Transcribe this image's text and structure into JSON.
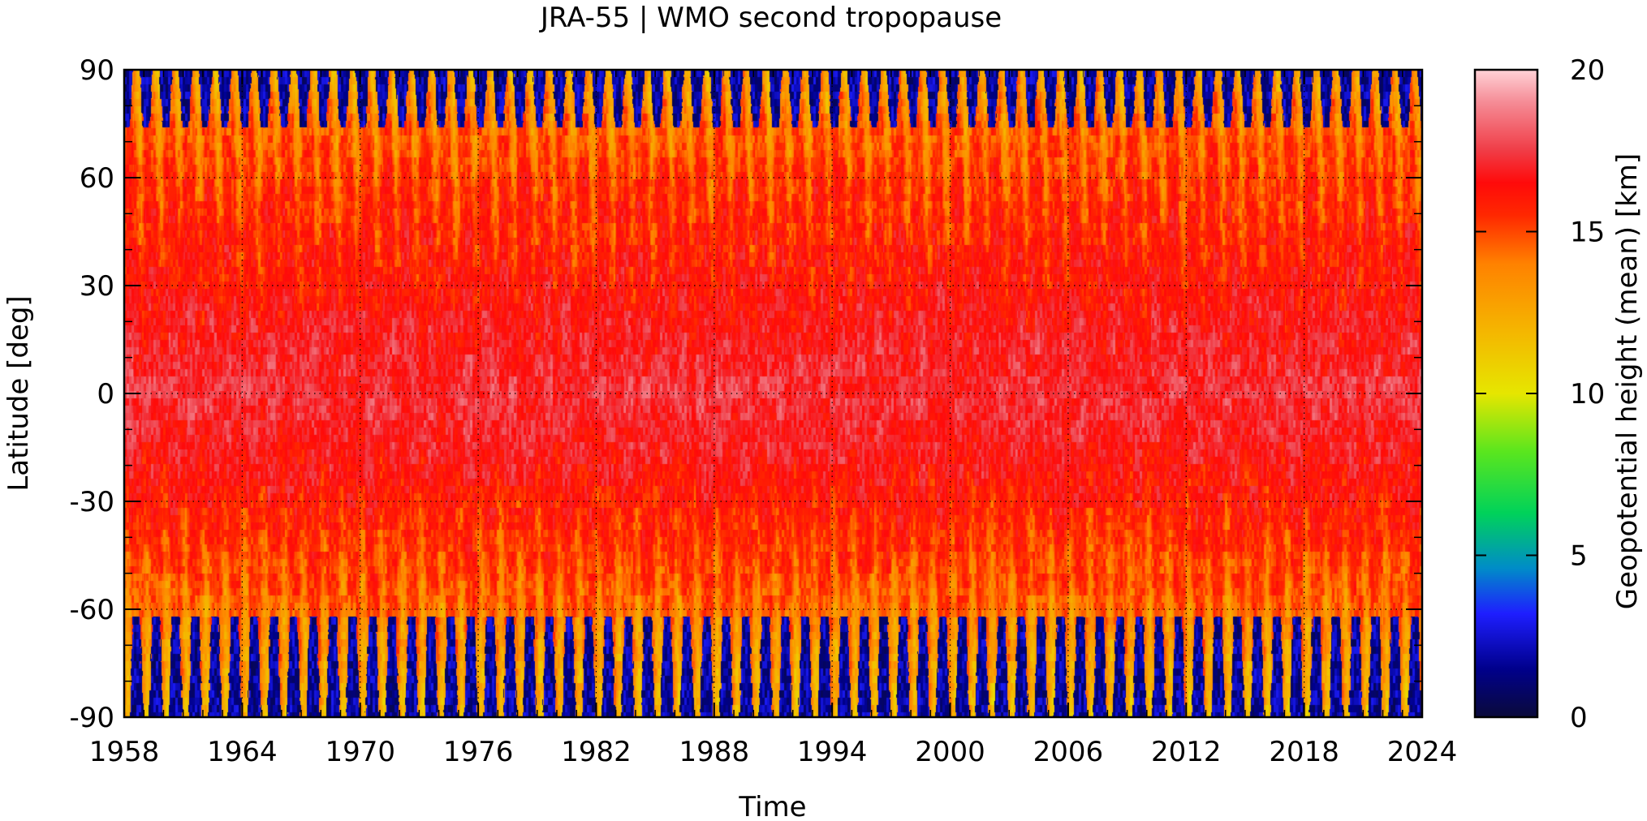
{
  "chart_data": {
    "type": "heatmap",
    "title": "JRA-55 | WMO second tropopause",
    "xlabel": "Time",
    "ylabel": "Latitude [deg]",
    "colorbar_label": "Geopotential height (mean) [km]",
    "xlim": [
      1958,
      2024
    ],
    "ylim": [
      -90,
      90
    ],
    "clim": [
      0,
      20
    ],
    "x_ticks": [
      1958,
      1964,
      1970,
      1976,
      1982,
      1988,
      1994,
      2000,
      2006,
      2012,
      2018,
      2024
    ],
    "x_tick_labels": [
      "1958",
      "1964",
      "1970",
      "1976",
      "1982",
      "1988",
      "1994",
      "2000",
      "2006",
      "2012",
      "2018",
      "2024"
    ],
    "y_ticks": [
      90,
      60,
      30,
      0,
      -30,
      -60,
      -90
    ],
    "y_tick_labels": [
      "90",
      "60",
      "30",
      "0",
      "-30",
      "-60",
      "-90"
    ],
    "colorbar_ticks": [
      20,
      15,
      10,
      5,
      0
    ],
    "colorbar_tick_labels": [
      "20",
      "15",
      "10",
      "5",
      "0"
    ],
    "colormap": [
      {
        "v": 0,
        "color": "#0a0a3a"
      },
      {
        "v": 1.5,
        "color": "#00008c"
      },
      {
        "v": 3.2,
        "color": "#1e1eff"
      },
      {
        "v": 4.6,
        "color": "#008cc8"
      },
      {
        "v": 6.3,
        "color": "#00d25a"
      },
      {
        "v": 8.2,
        "color": "#5ae61e"
      },
      {
        "v": 10,
        "color": "#e6e600"
      },
      {
        "v": 12,
        "color": "#f5b400"
      },
      {
        "v": 14,
        "color": "#ff8200"
      },
      {
        "v": 15.5,
        "color": "#ff2800"
      },
      {
        "v": 16.5,
        "color": "#ff0a0a"
      },
      {
        "v": 17.5,
        "color": "#f03c46"
      },
      {
        "v": 19,
        "color": "#f58c96"
      },
      {
        "v": 20,
        "color": "#ffd2d7"
      }
    ],
    "latitude_profile_km": [
      {
        "lat": -90,
        "z": 13.0
      },
      {
        "lat": -75,
        "z": 14.0
      },
      {
        "lat": -60,
        "z": 14.8
      },
      {
        "lat": -45,
        "z": 15.6
      },
      {
        "lat": -30,
        "z": 16.3
      },
      {
        "lat": -15,
        "z": 16.9
      },
      {
        "lat": 0,
        "z": 17.3
      },
      {
        "lat": 15,
        "z": 17.0
      },
      {
        "lat": 30,
        "z": 16.5
      },
      {
        "lat": 45,
        "z": 16.1
      },
      {
        "lat": 60,
        "z": 15.7
      },
      {
        "lat": 75,
        "z": 14.9
      },
      {
        "lat": 90,
        "z": 13.5
      }
    ],
    "seasonal_cycle_period_years": 1,
    "polar_gap_value_km": 0.5,
    "grid": true
  }
}
